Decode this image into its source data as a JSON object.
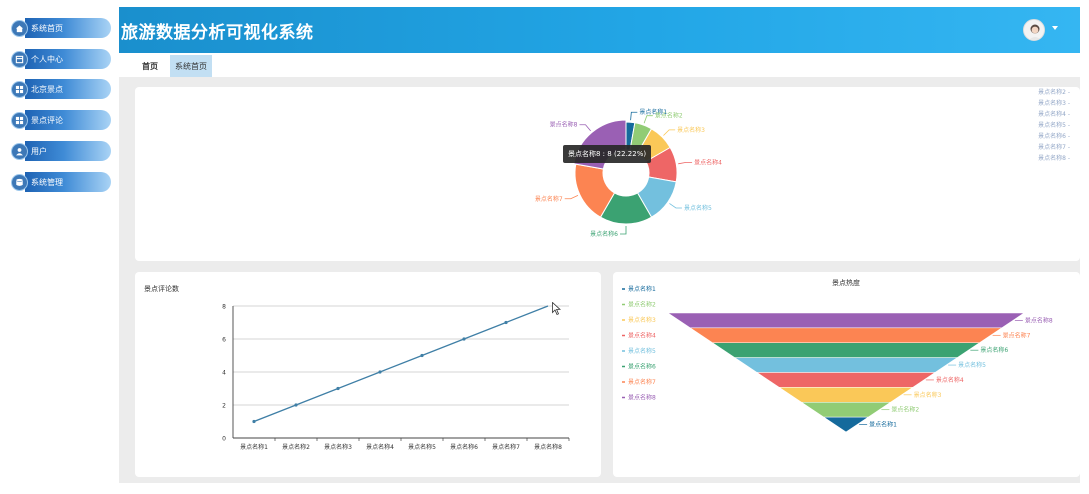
{
  "header": {
    "title": "旅游数据分析可视化系统"
  },
  "sidebar": {
    "items": [
      {
        "label": "系统首页",
        "icon": "home-icon"
      },
      {
        "label": "个人中心",
        "icon": "profile-icon"
      },
      {
        "label": "北京景点",
        "icon": "grid-icon"
      },
      {
        "label": "景点评论",
        "icon": "grid-icon"
      },
      {
        "label": "用户",
        "icon": "user-icon"
      },
      {
        "label": "系统管理",
        "icon": "database-icon"
      }
    ]
  },
  "tabs": [
    {
      "label": "首页"
    },
    {
      "label": "系统首页"
    }
  ],
  "colors": {
    "header_start": "#1a8fcd",
    "header_end": "#35b6f2",
    "sidebar_accent": "#3d78b7",
    "active_tab": "#c2dff3"
  },
  "pie_tooltip": "景点名称8 : 8 (22.22%)",
  "chart_data": [
    {
      "type": "pie",
      "title": "",
      "categories": [
        "景点名称1",
        "景点名称2",
        "景点名称3",
        "景点名称4",
        "景点名称5",
        "景点名称6",
        "景点名称7",
        "景点名称8"
      ],
      "values": [
        1,
        2,
        3,
        4,
        5,
        6,
        7,
        8
      ],
      "colors": [
        "#156a9c",
        "#91cc75",
        "#fac858",
        "#ee6666",
        "#73c0de",
        "#3ba272",
        "#fc8452",
        "#9a60b4"
      ],
      "legend_partial": [
        "景点名称2 -",
        "景点名称3 -",
        "景点名称4 -",
        "景点名称5 -",
        "景点名称6 -",
        "景点名称7 -",
        "景点名称8 -"
      ]
    },
    {
      "type": "line",
      "title": "景点评论数",
      "categories": [
        "景点名称1",
        "景点名称2",
        "景点名称3",
        "景点名称4",
        "景点名称5",
        "景点名称6",
        "景点名称7",
        "景点名称8"
      ],
      "values": [
        1,
        2,
        3,
        4,
        5,
        6,
        7,
        8
      ],
      "ylim": [
        0,
        8
      ],
      "yticks": [
        "0",
        "2",
        "4",
        "6",
        "8"
      ],
      "color": "#3f7fa6"
    },
    {
      "type": "funnel",
      "title": "景点热度",
      "categories": [
        "景点名称1",
        "景点名称2",
        "景点名称3",
        "景点名称4",
        "景点名称5",
        "景点名称6",
        "景点名称7",
        "景点名称8"
      ],
      "values": [
        1,
        2,
        3,
        4,
        5,
        6,
        7,
        8
      ],
      "colors": [
        "#156a9c",
        "#91cc75",
        "#fac858",
        "#ee6666",
        "#73c0de",
        "#3ba272",
        "#fc8452",
        "#9a60b4"
      ]
    }
  ]
}
